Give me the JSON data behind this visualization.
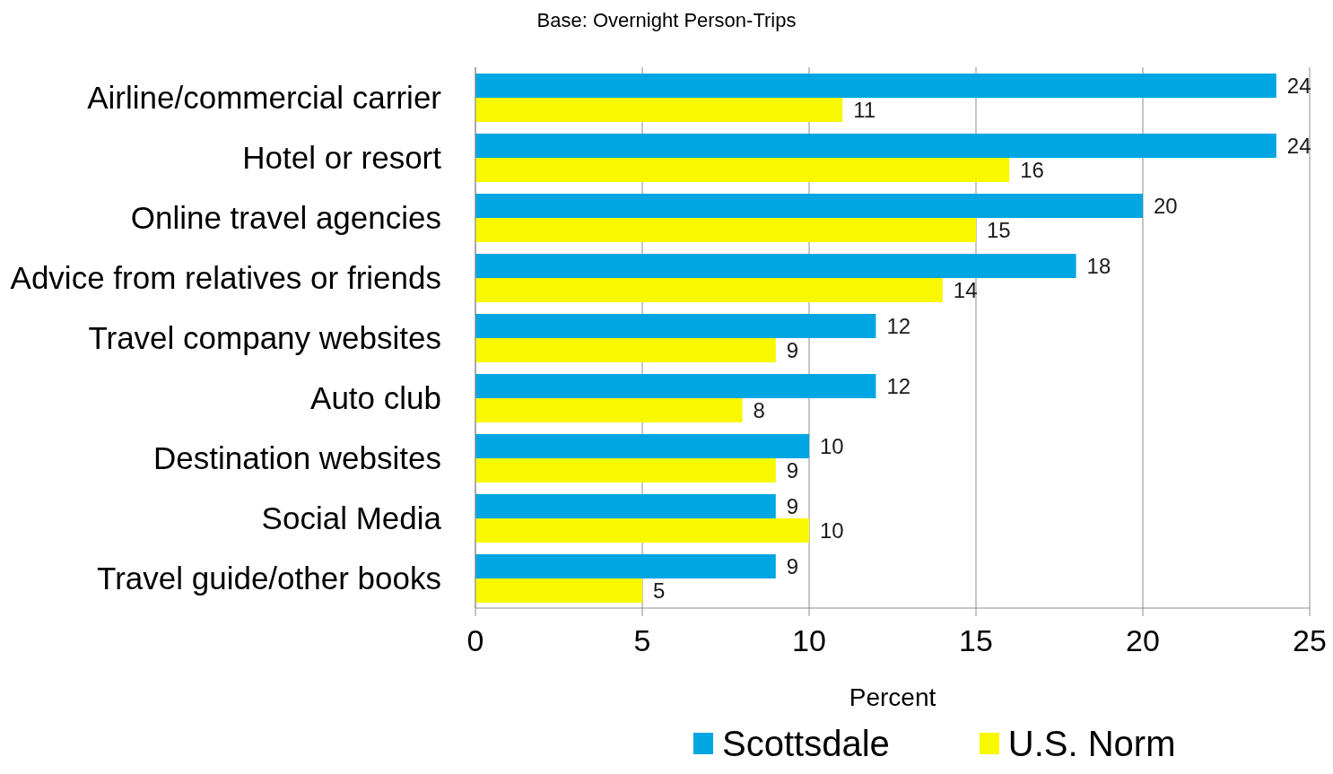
{
  "chart_data": {
    "type": "bar",
    "orientation": "horizontal",
    "subtitle": "Base: Overnight Person-Trips",
    "xlabel": "Percent",
    "categories": [
      "Airline/commercial carrier",
      "Hotel or resort",
      "Online travel agencies",
      "Advice from relatives or friends",
      "Travel company websites",
      "Auto club",
      "Destination websites",
      "Social Media",
      "Travel guide/other books"
    ],
    "series": [
      {
        "name": "Scottsdale",
        "color": "#00a6e2",
        "values": [
          24,
          24,
          20,
          18,
          12,
          12,
          10,
          9,
          9
        ]
      },
      {
        "name": "U.S. Norm",
        "color": "#f8f800",
        "values": [
          11,
          16,
          15,
          14,
          9,
          8,
          9,
          10,
          5
        ]
      }
    ],
    "xlim": [
      0,
      25
    ],
    "xticks": [
      0,
      5,
      10,
      15,
      20,
      25
    ],
    "grid": "x",
    "legend": "bottom",
    "data_labels": true
  }
}
